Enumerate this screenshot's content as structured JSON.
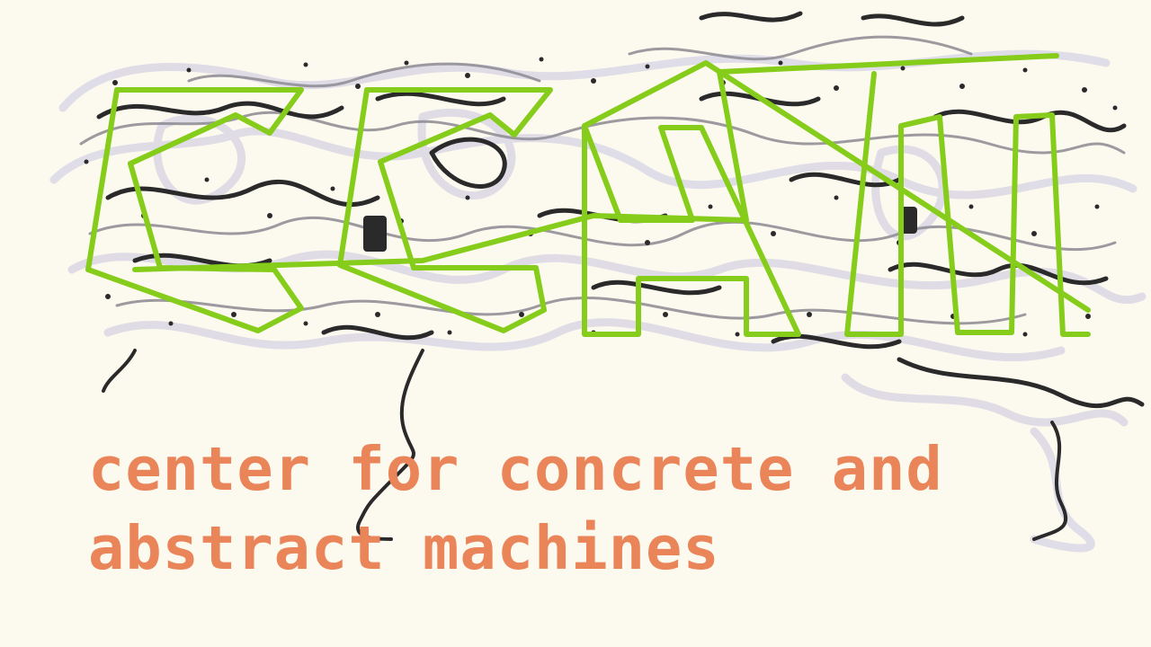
{
  "logo": {
    "text": "CCAM",
    "colors": {
      "background": "#fcf9ef",
      "outline": "#86cc1a",
      "ink": "#2a2a2a",
      "ink_light": "#dcd9e6"
    }
  },
  "tagline": {
    "line1": "center for concrete and",
    "line2": "abstract machines",
    "color": "#ea8459"
  }
}
